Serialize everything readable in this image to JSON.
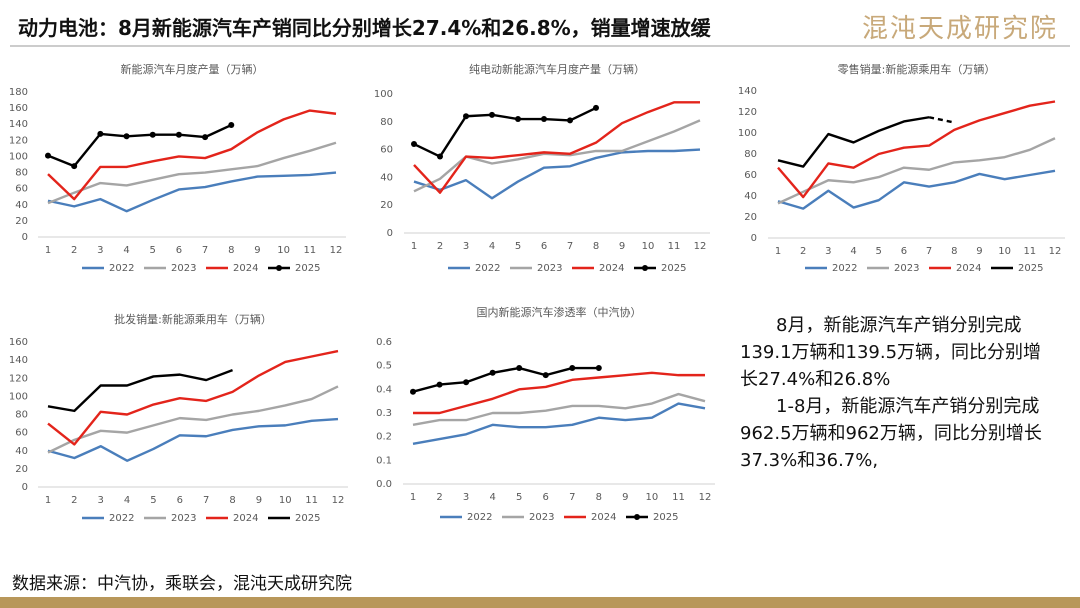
{
  "title": "动力电池：8月新能源汽车产销同比分别增长27.4%和26.8%，销量增速放缓",
  "logo": "混沌天成研究院",
  "notes": [
    "8月，新能源汽车产销分别完成139.1万辆和139.5万辆，同比分别增长27.4%和26.8%",
    "1-8月，新能源汽车产销分别完成962.5万辆和962万辆，同比分别增长37.3%和36.7%,"
  ],
  "source": "数据来源：中汽协，乘联会，混沌天成研究院",
  "chart_data": [
    {
      "type": "line",
      "title": "新能源汽车月度产量（万辆）",
      "categories": [
        "1",
        "2",
        "3",
        "4",
        "5",
        "6",
        "7",
        "8",
        "9",
        "10",
        "11",
        "12"
      ],
      "ylim": [
        0,
        180
      ],
      "yticks": [
        0,
        20,
        40,
        60,
        80,
        100,
        120,
        140,
        160,
        180
      ],
      "grid": false,
      "legend": "bottom",
      "series": [
        {
          "name": "2022",
          "color": "#4a7ebb",
          "values": [
            45,
            38,
            47,
            32,
            46,
            59,
            62,
            69,
            75,
            76,
            77,
            80
          ]
        },
        {
          "name": "2023",
          "color": "#a5a5a5",
          "values": [
            42,
            55,
            67,
            64,
            71,
            78,
            80,
            84,
            88,
            98,
            107,
            117
          ]
        },
        {
          "name": "2024",
          "color": "#e3241b",
          "values": [
            78,
            47,
            87,
            87,
            94,
            100,
            98,
            109,
            130,
            146,
            157,
            153
          ]
        },
        {
          "name": "2025",
          "color": "#000000",
          "markers": true,
          "values": [
            101,
            88,
            128,
            125,
            127,
            127,
            124,
            139,
            null,
            null,
            null,
            null
          ]
        }
      ]
    },
    {
      "type": "line",
      "title": "纯电动新能源汽车月度产量（万辆）",
      "categories": [
        "1",
        "2",
        "3",
        "4",
        "5",
        "6",
        "7",
        "8",
        "9",
        "10",
        "11",
        "12"
      ],
      "ylim": [
        0,
        100
      ],
      "yticks": [
        0,
        20,
        40,
        60,
        80,
        100
      ],
      "grid": false,
      "legend": "bottom",
      "series": [
        {
          "name": "2022",
          "color": "#4a7ebb",
          "values": [
            37,
            31,
            38,
            25,
            37,
            47,
            48,
            54,
            58,
            59,
            59,
            60
          ]
        },
        {
          "name": "2023",
          "color": "#a5a5a5",
          "values": [
            30,
            39,
            55,
            50,
            53,
            57,
            56,
            59,
            59,
            66,
            73,
            81
          ]
        },
        {
          "name": "2024",
          "color": "#e3241b",
          "values": [
            49,
            29,
            55,
            54,
            56,
            58,
            57,
            65,
            79,
            87,
            94,
            94
          ]
        },
        {
          "name": "2025",
          "color": "#000000",
          "markers": true,
          "values": [
            64,
            55,
            84,
            85,
            82,
            82,
            81,
            90,
            null,
            null,
            null,
            null
          ]
        }
      ]
    },
    {
      "type": "line",
      "title": "零售销量:新能源乘用车（万辆）",
      "categories": [
        "1",
        "2",
        "3",
        "4",
        "5",
        "6",
        "7",
        "8",
        "9",
        "10",
        "11",
        "12"
      ],
      "ylim": [
        0,
        140
      ],
      "yticks": [
        0,
        20,
        40,
        60,
        80,
        100,
        120,
        140
      ],
      "grid": false,
      "legend": "bottom",
      "series": [
        {
          "name": "2022",
          "color": "#4a7ebb",
          "values": [
            35,
            28,
            45,
            29,
            36,
            53,
            49,
            53,
            61,
            56,
            60,
            64
          ]
        },
        {
          "name": "2023",
          "color": "#a5a5a5",
          "values": [
            33,
            44,
            55,
            53,
            58,
            67,
            65,
            72,
            74,
            77,
            84,
            95
          ]
        },
        {
          "name": "2024",
          "color": "#e3241b",
          "values": [
            67,
            39,
            71,
            67,
            80,
            86,
            88,
            103,
            112,
            119,
            126,
            130
          ]
        },
        {
          "name": "2025",
          "color": "#000000",
          "dashed_last_segment": true,
          "values": [
            74,
            68,
            99,
            91,
            102,
            111,
            115,
            110,
            null,
            null,
            null,
            null
          ]
        }
      ]
    },
    {
      "type": "line",
      "title": "批发销量:新能源乘用车（万辆）",
      "categories": [
        "1",
        "2",
        "3",
        "4",
        "5",
        "6",
        "7",
        "8",
        "9",
        "10",
        "11",
        "12"
      ],
      "ylim": [
        0,
        160
      ],
      "yticks": [
        0,
        20,
        40,
        60,
        80,
        100,
        120,
        140,
        160
      ],
      "grid": false,
      "legend": "bottom",
      "series": [
        {
          "name": "2022",
          "color": "#4a7ebb",
          "values": [
            40,
            32,
            45,
            29,
            42,
            57,
            56,
            63,
            67,
            68,
            73,
            75
          ]
        },
        {
          "name": "2023",
          "color": "#a5a5a5",
          "values": [
            38,
            52,
            62,
            60,
            68,
            76,
            74,
            80,
            84,
            90,
            97,
            111
          ]
        },
        {
          "name": "2024",
          "color": "#e3241b",
          "values": [
            70,
            47,
            83,
            80,
            91,
            98,
            95,
            105,
            123,
            138,
            144,
            150
          ]
        },
        {
          "name": "2025",
          "color": "#000000",
          "values": [
            89,
            84,
            112,
            112,
            122,
            124,
            118,
            129,
            null,
            null,
            null,
            null
          ]
        }
      ]
    },
    {
      "type": "line",
      "title": "国内新能源汽车渗透率（中汽协）",
      "categories": [
        "1",
        "2",
        "3",
        "4",
        "5",
        "6",
        "7",
        "8",
        "9",
        "10",
        "11",
        "12"
      ],
      "ylim": [
        0,
        0.6
      ],
      "yticks": [
        {
          "value": 0,
          "label": "0.0"
        },
        0.1,
        0.2,
        0.3,
        0.4,
        0.5,
        0.6
      ],
      "grid": false,
      "legend": "bottom",
      "series": [
        {
          "name": "2022",
          "color": "#4a7ebb",
          "values": [
            0.17,
            0.19,
            0.21,
            0.25,
            0.24,
            0.24,
            0.25,
            0.28,
            0.27,
            0.28,
            0.34,
            0.32
          ]
        },
        {
          "name": "2023",
          "color": "#a5a5a5",
          "values": [
            0.25,
            0.27,
            0.27,
            0.3,
            0.3,
            0.31,
            0.33,
            0.33,
            0.32,
            0.34,
            0.38,
            0.35
          ]
        },
        {
          "name": "2024",
          "color": "#e3241b",
          "values": [
            0.3,
            0.3,
            0.33,
            0.36,
            0.4,
            0.41,
            0.44,
            0.45,
            0.46,
            0.47,
            0.46,
            0.46
          ]
        },
        {
          "name": "2025",
          "color": "#000000",
          "markers": true,
          "values": [
            0.39,
            0.42,
            0.43,
            0.47,
            0.49,
            0.46,
            0.49,
            0.49,
            null,
            null,
            null,
            null
          ]
        }
      ]
    }
  ]
}
